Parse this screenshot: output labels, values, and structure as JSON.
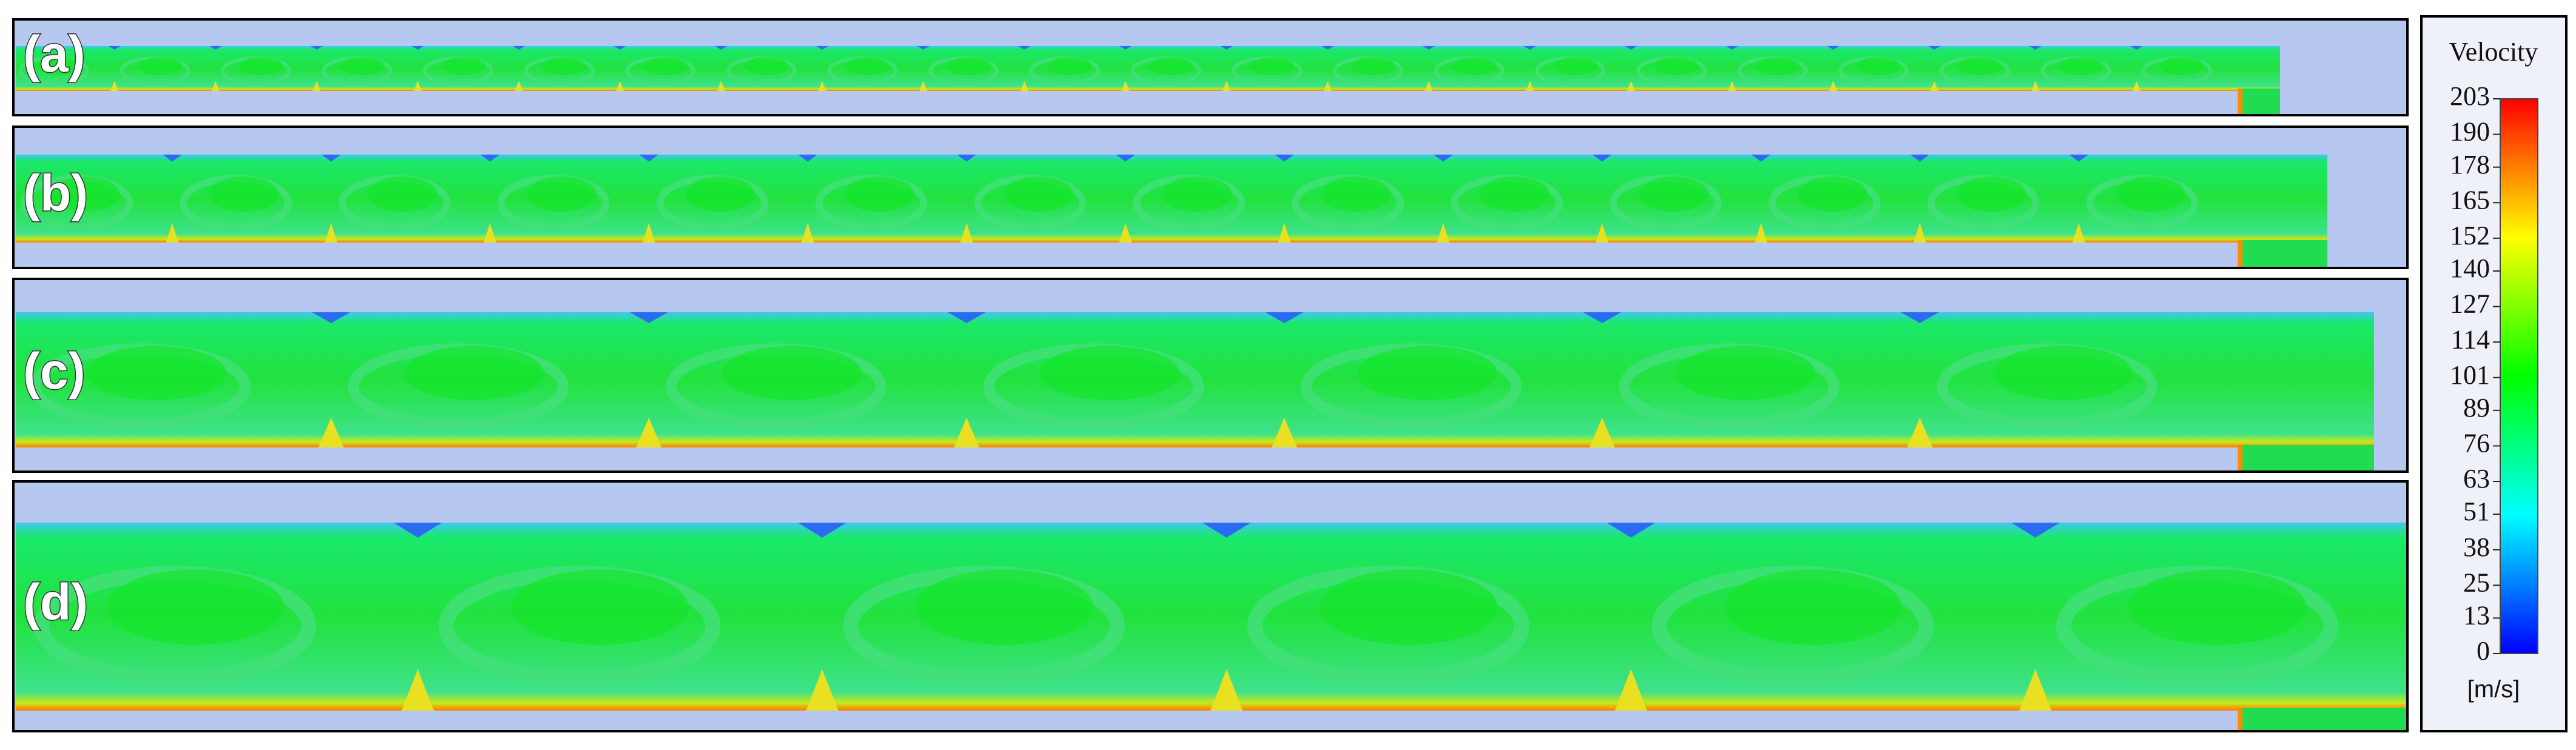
{
  "panels": [
    {
      "label": "(a)"
    },
    {
      "label": "(b)"
    },
    {
      "label": "(c)"
    },
    {
      "label": "(d)"
    }
  ],
  "colorbar": {
    "title": "Velocity",
    "ticks": [
      0,
      13,
      25,
      38,
      51,
      63,
      76,
      89,
      101,
      114,
      127,
      140,
      152,
      165,
      178,
      190,
      203
    ],
    "unit": "[m/s]"
  }
}
